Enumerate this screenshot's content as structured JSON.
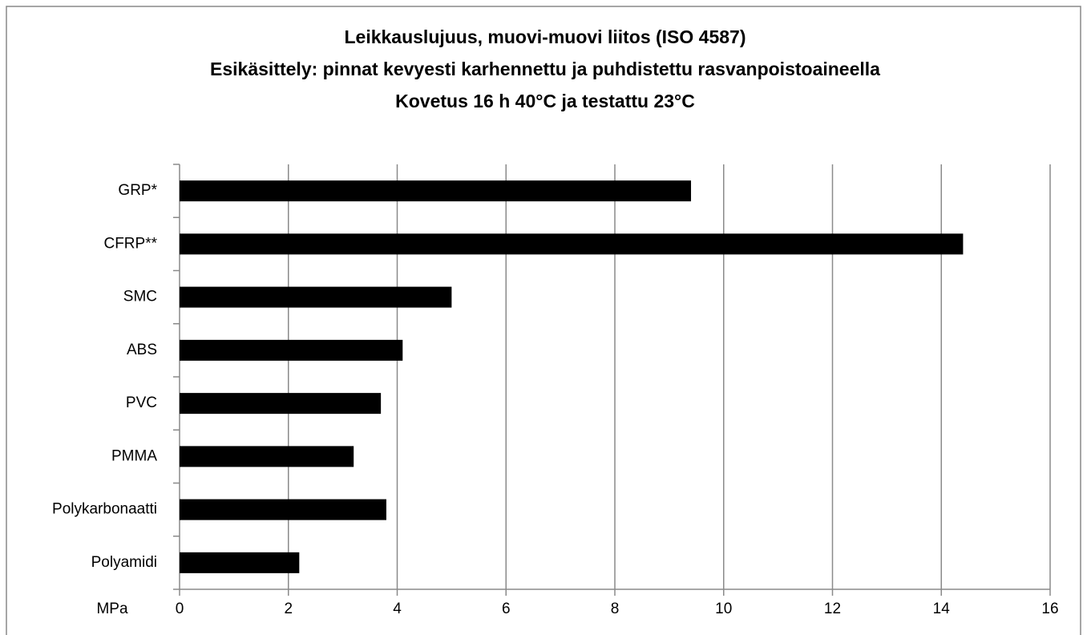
{
  "chart_data": {
    "type": "bar",
    "orientation": "horizontal",
    "title": [
      "Leikkauslujuus, muovi-muovi liitos (ISO 4587)",
      "Esikäsittely: pinnat kevyesti karhennettu ja puhdistettu rasvanpoistoaineella",
      "Kovetus 16 h 40°C ja testattu 23°C"
    ],
    "x_label": "MPa",
    "categories": [
      "GRP*",
      "CFRP**",
      "SMC",
      "ABS",
      "PVC",
      "PMMA",
      "Polykarbonaatti",
      "Polyamidi"
    ],
    "values": [
      9.4,
      14.4,
      5.0,
      4.1,
      3.7,
      3.2,
      3.8,
      2.2
    ],
    "color": "#000000",
    "xlim": [
      0,
      16
    ],
    "xticks": [
      0,
      2,
      4,
      6,
      8,
      10,
      12,
      14,
      16
    ],
    "grid": true
  }
}
